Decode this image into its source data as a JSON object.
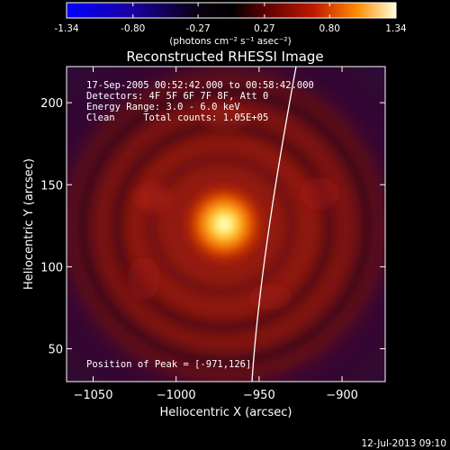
{
  "colorbar": {
    "tick_labels": [
      "-1.34",
      "-0.80",
      "-0.27",
      "0.27",
      "0.80",
      "1.34"
    ],
    "ticks": [
      -1.34,
      -0.8,
      -0.27,
      0.27,
      0.8,
      1.34
    ],
    "range": [
      -1.34,
      1.34
    ],
    "units": "(photons cm⁻² s⁻¹ asec⁻²)"
  },
  "title": "Reconstructed RHESSI Image",
  "annotations": {
    "time_range": "17-Sep-2005 00:52:42.000 to 00:58:42.000",
    "detectors": "Detectors: 4F 5F 6F 7F 8F, Att 0",
    "energy": "Energy Range: 3.0 - 6.0 keV",
    "clean": "Clean     Total counts: 1.05E+05",
    "peak": "Position of Peak = [-971,126]"
  },
  "axes": {
    "xlabel": "Heliocentric X (arcsec)",
    "ylabel": "Heliocentric Y (arcsec)",
    "xlim": [
      -1066,
      -874
    ],
    "ylim": [
      30,
      222
    ],
    "x_ticks": [
      -1050,
      -1000,
      -950,
      -900
    ],
    "y_ticks": [
      50,
      100,
      150,
      200
    ]
  },
  "peak": {
    "x": -971,
    "y": 126
  },
  "timestamp": "12-Jul-2013 09:10",
  "colors": {
    "background": "#000000",
    "text": "#ffffff",
    "limb": "#ffffff"
  }
}
